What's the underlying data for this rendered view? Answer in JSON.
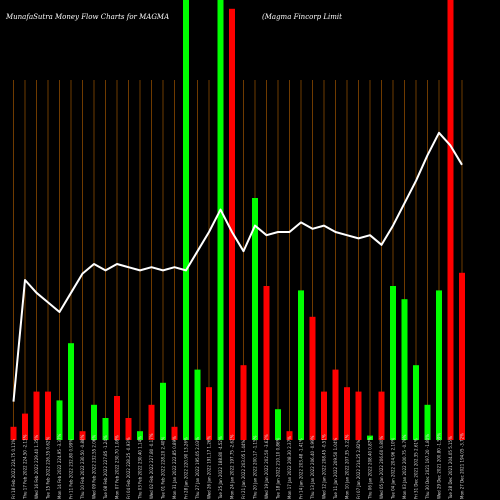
{
  "title_left": "MunafaSutra  Money Flow  Charts for MAGMA",
  "title_right": "(Magma  Fincorp Limit",
  "chart_data": {
    "type": "bar",
    "title": "MunafaSutra  Money Flow  Charts for MAGMA",
    "subtitle": "(Magma  Fincorp Limit",
    "grid": true,
    "colors": {
      "up": "#00ff00",
      "down": "#ff0000",
      "line": "#ffffff",
      "grid": "#8a4a00",
      "background": "#000000"
    },
    "categories": [
      "Fri 18 Feb 2022 224.75 0.11%",
      "Thu 17 Feb 2022 224.50 -2.13%",
      "Wed 16 Feb 2022 229.40 1.35%",
      "Tue 15 Feb 2022 226.35 0.62%",
      "Mon 14 Feb 2022 224.95 -3.37%",
      "Fri 11 Feb 2022 232.80 0.99%",
      "Thu 10 Feb 2022 230.50 -0.88%",
      "Wed 09 Feb 2022 232.55 2.06%",
      "Tue 08 Feb 2022 227.85 -1.24%",
      "Mon 07 Feb 2022 230.70 1.08%",
      "Fri 04 Feb 2022 228.25 -0.93%",
      "Thu 03 Feb 2022 230.40 1.14%",
      "Wed 02 Feb 2022 227.80 -0.17%",
      "Tue 01 Feb 2022 228.20 2.40%",
      "Mon 31 Jan 2022 222.85 0.89%",
      "Fri 28 Jan 2022 220.90 13.26%",
      "Thu 27 Jan 2022 195.05 2.03%",
      "Wed 26 Jan 2022 191.17 1.26%",
      "Tue 25 Jan 2022 188.80 -4.52%",
      "Mon 24 Jan 2022 197.75 -2.62%",
      "Fri 21 Jan 2022 203.05 1.44%",
      "Thu 20 Jan 2022 200.17 -1.15%",
      "Wed 19 Jan 2022 202.50 -3.62%",
      "Tue 18 Jan 2022 210.10 0.86%",
      "Mon 17 Jan 2022 208.30 2.37%",
      "Fri 14 Jan 2022 203.48 -1.41%",
      "Thu 13 Jan 2022 206.40 -0.99%",
      "Wed 12 Jan 2022 208.45 -0.51%",
      "Tue 11 Jan 2022 209.50 1.04%",
      "Mon 10 Jan 2022 207.35 -3.22%",
      "Fri 07 Jan 2022 214.25 2.82%",
      "Thu 06 Jan 2022 208.40 0.87%",
      "Wed 05 Jan 2022 206.60 0.80%",
      "Tue 04 Jan 2022 204.96 2.10%",
      "Mon 03 Jan 2022 200.75 -0.79%",
      "Fri 31 Dec 2021 202.35 2.61%",
      "Thu 30 Dec 2021 197.20 -1.80%",
      "Wed 29 Dec 2021 200.80 -1.59%",
      "Tue 28 Dec 2021 204.05 5.15%",
      "Mon 27 Dec 2021 194.05 -3.72%"
    ],
    "series": [
      {
        "kind": "volume",
        "values": [
          3,
          6,
          11,
          11,
          9,
          22,
          2,
          8,
          5,
          10,
          5,
          2,
          8,
          13,
          3,
          100,
          16,
          12,
          100,
          98,
          17,
          55,
          35,
          7,
          2,
          34,
          28,
          11,
          16,
          12,
          11,
          1,
          11,
          35,
          32,
          17,
          8,
          34,
          100,
          38
        ],
        "directions": [
          "down",
          "down",
          "down",
          "down",
          "up",
          "up",
          "down",
          "up",
          "up",
          "down",
          "down",
          "up",
          "down",
          "up",
          "down",
          "up",
          "up",
          "down",
          "up",
          "down",
          "down",
          "up",
          "down",
          "up",
          "down",
          "up",
          "down",
          "down",
          "down",
          "down",
          "down",
          "up",
          "down",
          "up",
          "up",
          "up",
          "up",
          "up",
          "down",
          "down"
        ]
      },
      {
        "kind": "money-flow-line",
        "values": [
          0.12,
          0.5,
          0.46,
          0.43,
          0.4,
          0.46,
          0.52,
          0.55,
          0.53,
          0.55,
          0.54,
          0.53,
          0.54,
          0.53,
          0.54,
          0.53,
          0.59,
          0.65,
          0.72,
          0.65,
          0.59,
          0.67,
          0.64,
          0.65,
          0.65,
          0.68,
          0.66,
          0.67,
          0.65,
          0.64,
          0.63,
          0.64,
          0.61,
          0.67,
          0.74,
          0.81,
          0.89,
          0.96,
          0.92,
          0.86
        ]
      }
    ]
  }
}
